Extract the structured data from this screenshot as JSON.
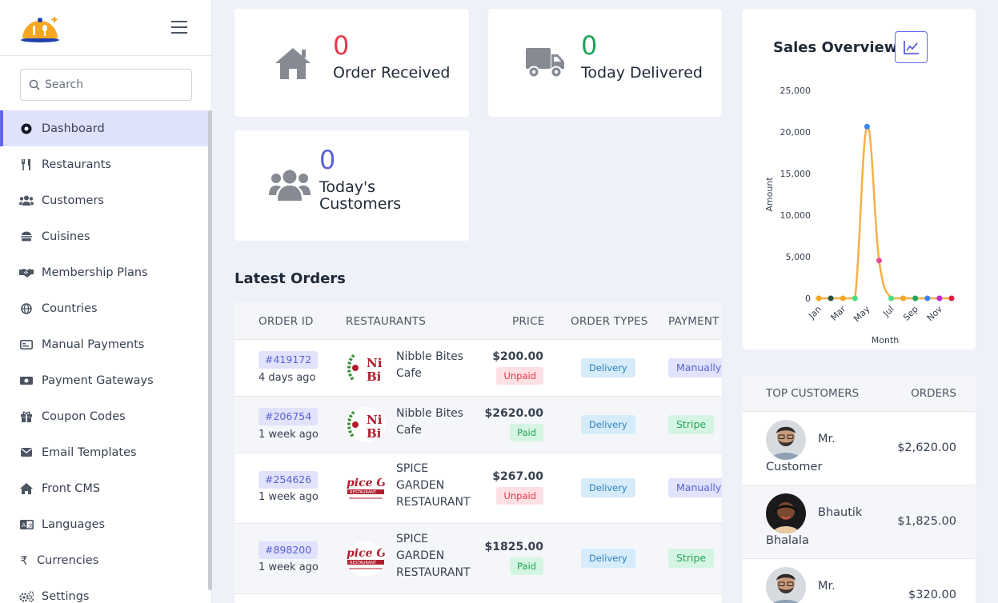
{
  "sidebar": {
    "search_placeholder": "Search",
    "items": [
      {
        "label": "Dashboard",
        "icon": "dashboard-icon"
      },
      {
        "label": "Restaurants",
        "icon": "utensils-icon"
      },
      {
        "label": "Customers",
        "icon": "users-icon"
      },
      {
        "label": "Cuisines",
        "icon": "burger-icon"
      },
      {
        "label": "Membership Plans",
        "icon": "handshake-icon"
      },
      {
        "label": "Countries",
        "icon": "globe-icon"
      },
      {
        "label": "Manual Payments",
        "icon": "credit-card-icon"
      },
      {
        "label": "Payment Gateways",
        "icon": "money-icon"
      },
      {
        "label": "Coupon Codes",
        "icon": "gift-icon"
      },
      {
        "label": "Email Templates",
        "icon": "envelope-icon"
      },
      {
        "label": "Front CMS",
        "icon": "home-icon"
      },
      {
        "label": "Languages",
        "icon": "language-icon"
      },
      {
        "label": "Currencies",
        "icon": "rupee-icon"
      },
      {
        "label": "Settings",
        "icon": "gears-icon"
      }
    ]
  },
  "stats": {
    "orders": {
      "value": "0",
      "label": "Order Received",
      "color": "#e5394d"
    },
    "delivered": {
      "value": "0",
      "label": "Today Delivered",
      "color": "#22a35a"
    },
    "customers": {
      "value": "0",
      "label_line1": "Today's",
      "label_line2": "Customers",
      "color": "#5b61d6"
    }
  },
  "orders": {
    "title": "Latest Orders",
    "columns": [
      "ORDER ID",
      "RESTAURANTS",
      "PRICE",
      "ORDER TYPES",
      "PAYMENT T"
    ],
    "rows": [
      {
        "id": "#419172",
        "ago": "4 days ago",
        "restaurant_line1": "Nibble Bites",
        "restaurant_line2": "Cafe",
        "restaurant_line3": "",
        "price": "$200.00",
        "status": "Unpaid",
        "type": "Delivery",
        "payment": "Manually"
      },
      {
        "id": "#206754",
        "ago": "1 week ago",
        "restaurant_line1": "Nibble Bites",
        "restaurant_line2": "Cafe",
        "restaurant_line3": "",
        "price": "$2620.00",
        "status": "Paid",
        "type": "Delivery",
        "payment": "Stripe"
      },
      {
        "id": "#254626",
        "ago": "1 week ago",
        "restaurant_line1": "SPICE",
        "restaurant_line2": "GARDEN",
        "restaurant_line3": "RESTAURANT",
        "price": "$267.00",
        "status": "Unpaid",
        "type": "Delivery",
        "payment": "Manually"
      },
      {
        "id": "#898200",
        "ago": "1 week ago",
        "restaurant_line1": "SPICE",
        "restaurant_line2": "GARDEN",
        "restaurant_line3": "RESTAURANT",
        "price": "$1825.00",
        "status": "Paid",
        "type": "Delivery",
        "payment": "Stripe"
      }
    ]
  },
  "sales": {
    "title": "Sales Overview",
    "icon": "line-chart-icon"
  },
  "chart_data": {
    "type": "line",
    "title": "Sales Overview",
    "xlabel": "Month",
    "ylabel": "Amount",
    "x": [
      "Jan",
      "Feb",
      "Mar",
      "Apr",
      "May",
      "Jun",
      "Jul",
      "Aug",
      "Sep",
      "Oct",
      "Nov",
      "Dec"
    ],
    "tick_labels": [
      "Jan",
      "Mar",
      "May",
      "Jul",
      "Sep",
      "Nov"
    ],
    "values": [
      0,
      0,
      0,
      0,
      20645,
      4537,
      0,
      0,
      0,
      0,
      0,
      0
    ],
    "point_colors": [
      "#f5a623",
      "#22543d",
      "#f5a623",
      "#4ade80",
      "#3b82f6",
      "#ec4899",
      "#4ade80",
      "#f5a623",
      "#22a35a",
      "#3b82f6",
      "#c026d3",
      "#e11d48"
    ],
    "line_color": "#f5b04a",
    "ylim": [
      0,
      25000
    ],
    "yticks": [
      "0",
      "5,000",
      "10,000",
      "15,000",
      "20,000",
      "25,000"
    ],
    "grid": false
  },
  "top_customers": {
    "columns": [
      "TOP CUSTOMERS",
      "ORDERS"
    ],
    "rows": [
      {
        "name1": "Mr.",
        "name2": "Customer",
        "amount": "$2,620.00"
      },
      {
        "name1": "Bhautik",
        "name2": "Bhalala",
        "amount": "$1,825.00"
      },
      {
        "name1": "Mr.",
        "name2": "",
        "amount": "$320.00"
      }
    ]
  }
}
